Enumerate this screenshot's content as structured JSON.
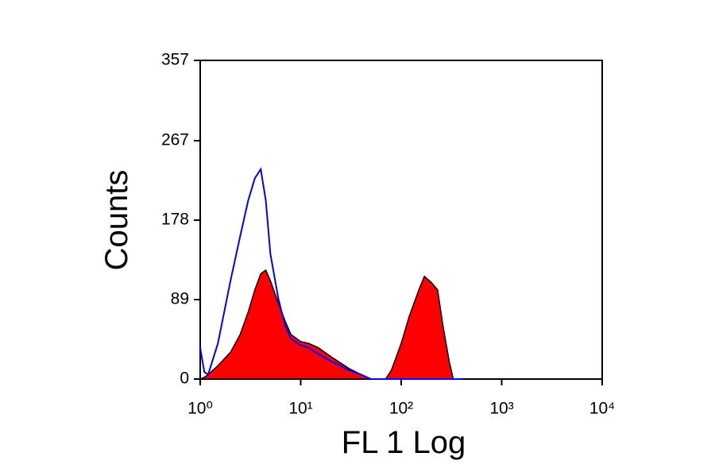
{
  "chart_data": {
    "type": "histogram-overlay",
    "xlabel": "FL 1 Log",
    "ylabel": "Counts",
    "xscale": "log",
    "xlim": [
      1,
      10000
    ],
    "xticks": [
      {
        "value": 1,
        "label": "10⁰"
      },
      {
        "value": 10,
        "label": "10¹"
      },
      {
        "value": 100,
        "label": "10²"
      },
      {
        "value": 1000,
        "label": "10³"
      },
      {
        "value": 10000,
        "label": "10⁴"
      }
    ],
    "ylim": [
      0,
      357
    ],
    "yticks": [
      0,
      89,
      178,
      267,
      357
    ],
    "x": [
      1,
      1.1,
      1.2,
      1.5,
      2,
      2.5,
      3,
      3.5,
      4,
      4.5,
      5,
      6,
      7,
      8,
      10,
      12,
      15,
      20,
      25,
      30,
      40,
      50,
      60,
      70,
      80,
      100,
      120,
      150,
      170,
      200,
      230,
      260,
      300,
      330,
      400
    ],
    "series": [
      {
        "style": "filled",
        "color": "#ff0000",
        "values": [
          0,
          2,
          5,
          15,
          30,
          50,
          75,
          100,
          118,
          122,
          110,
          85,
          65,
          50,
          42,
          40,
          35,
          25,
          18,
          12,
          5,
          0,
          0,
          0,
          10,
          40,
          70,
          100,
          115,
          108,
          100,
          60,
          20,
          0,
          0
        ]
      },
      {
        "style": "line",
        "color": "#0000ff",
        "values": [
          35,
          8,
          5,
          40,
          110,
          160,
          200,
          225,
          235,
          200,
          140,
          90,
          60,
          45,
          38,
          35,
          28,
          20,
          15,
          10,
          5,
          0,
          0,
          0,
          0,
          0,
          0,
          0,
          0,
          0,
          0,
          0,
          0,
          0,
          0
        ]
      }
    ]
  }
}
